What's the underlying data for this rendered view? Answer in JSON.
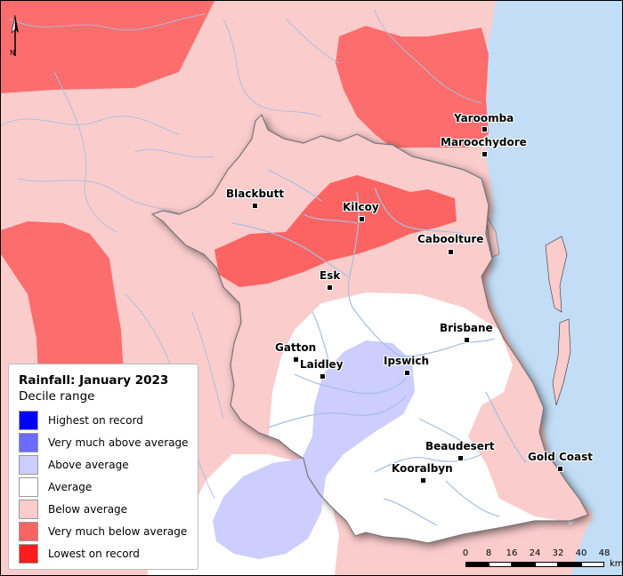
{
  "legend": {
    "title": "Rainfall: January 2023",
    "subtitle": "Decile range",
    "items": [
      {
        "label": "Highest on record",
        "color": "#0000ff"
      },
      {
        "label": "Very much above average",
        "color": "#6b6bff"
      },
      {
        "label": "Above average",
        "color": "#cdcdff"
      },
      {
        "label": "Average",
        "color": "#ffffff"
      },
      {
        "label": "Below average",
        "color": "#fbcccc"
      },
      {
        "label": "Very much below average",
        "color": "#fc6464"
      },
      {
        "label": "Lowest on record",
        "color": "#fe1c1c"
      }
    ]
  },
  "towns": {
    "yaroomba": "Yaroomba",
    "maroochydore": "Maroochydore",
    "blackbutt": "Blackbutt",
    "kilcoy": "Kilcoy",
    "caboolture": "Caboolture",
    "esk": "Esk",
    "brisbane": "Brisbane",
    "gatton": "Gatton",
    "laidley": "Laidley",
    "ipswich": "Ipswich",
    "beaudesert": "Beaudesert",
    "kooralbyn": "Kooralbyn",
    "gold_coast": "Gold Coast"
  },
  "scale_bar": {
    "ticks": [
      "0",
      "8",
      "16",
      "24",
      "32",
      "40",
      "48"
    ],
    "unit": "km"
  },
  "north_arrow": {
    "label": "N"
  },
  "colors": {
    "ocean": "#c2ddf5",
    "river": "#a4bfe0",
    "basin_border": "#777777"
  }
}
